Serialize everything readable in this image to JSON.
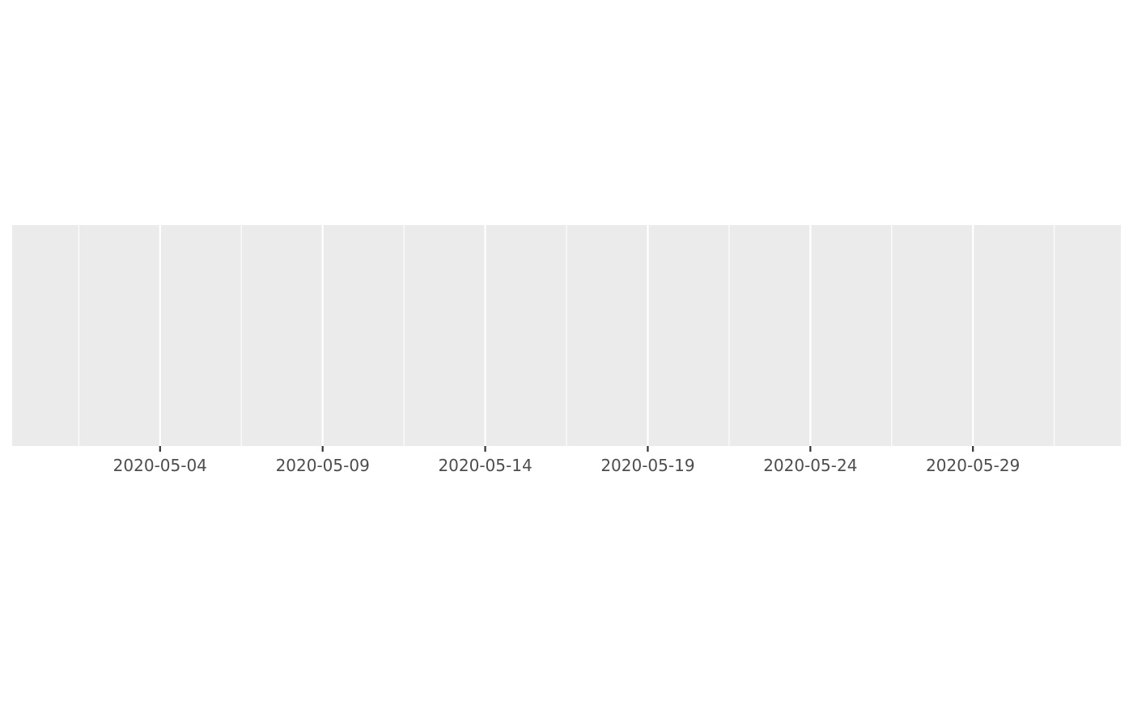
{
  "chart_data": {
    "type": "line",
    "title": "",
    "xlabel": "",
    "ylabel": "",
    "x_scale": "date",
    "xlim": [
      "2020-05-01",
      "2020-06-01"
    ],
    "x_expansion": 0.05,
    "x_major_ticks": [
      "2020-05-04",
      "2020-05-09",
      "2020-05-14",
      "2020-05-19",
      "2020-05-24",
      "2020-05-29"
    ],
    "x_tick_labels": [
      "2020-05-04",
      "2020-05-09",
      "2020-05-14",
      "2020-05-19",
      "2020-05-24",
      "2020-05-29"
    ],
    "x_minor_breaks": [
      "2020-05-01T12:00",
      "2020-05-06T12:00",
      "2020-05-11T12:00",
      "2020-05-16T12:00",
      "2020-05-21T12:00",
      "2020-05-26T12:00",
      "2020-05-31T12:00"
    ],
    "series": [],
    "grid": true,
    "y_axis_shown": false,
    "colors": {
      "panel": "#EBEBEB",
      "grid": "#FFFFFF",
      "tick": "#333333",
      "text": "#4D4D4D"
    }
  }
}
